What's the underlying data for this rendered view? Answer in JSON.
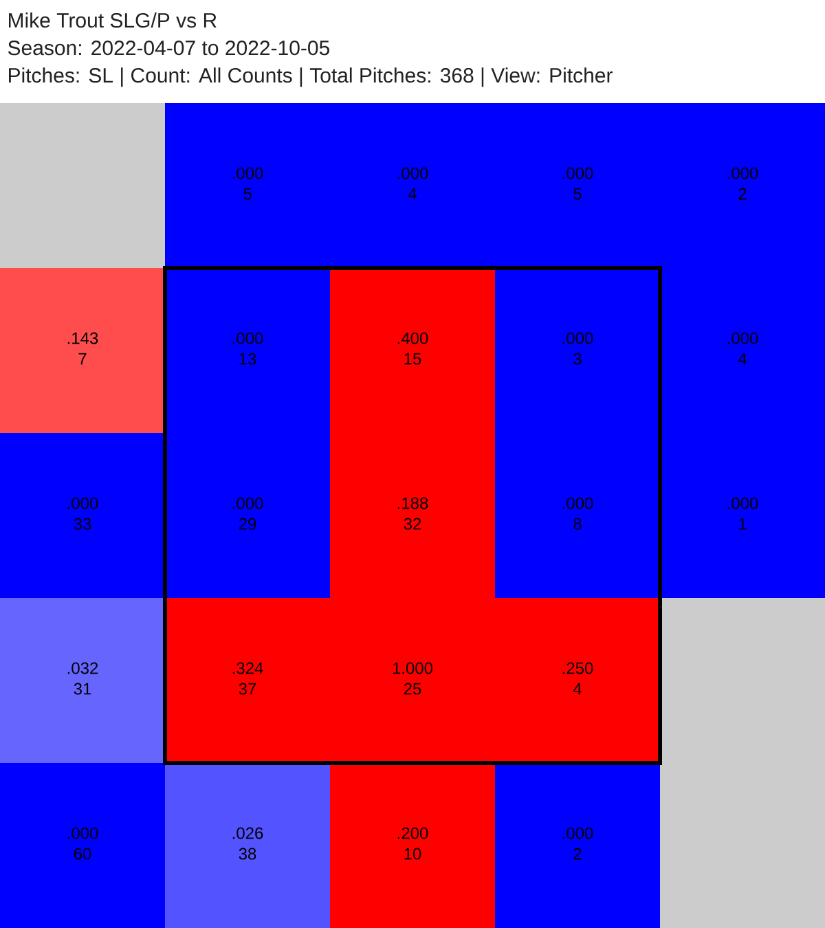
{
  "chart_data": [
    {
      "type": "heatmap",
      "title": "Mike Trout SLG/P vs R",
      "subtitle": "Season: 2022-04-07 to 2022-10-05",
      "annotations": [
        "Pitches: SL | Count: All Counts | Total Pitches: 368 | View: Pitcher"
      ],
      "categories": [
        null,
        null,
        null,
        null,
        null
      ],
      "y_categories": [
        null,
        null,
        null,
        null,
        null
      ],
      "cells": [
        [
          null,
          0,
          0,
          0,
          0
        ],
        [
          0.143,
          0,
          0.4,
          0,
          0
        ],
        [
          0,
          0,
          0.188,
          0,
          0
        ],
        [
          0.032,
          0.324,
          1.0,
          0.25,
          null
        ],
        [
          0,
          0.026,
          0.2,
          0,
          null
        ]
      ],
      "cell_labels": [
        [
          null,
          ".000",
          ".000",
          ".000",
          ".000"
        ],
        [
          ".143",
          ".000",
          ".400",
          ".000",
          ".000"
        ],
        [
          ".000",
          ".000",
          ".188",
          ".000",
          ".000"
        ],
        [
          ".032",
          ".324",
          "1.000",
          ".250",
          null
        ],
        [
          ".000",
          ".026",
          ".200",
          ".000",
          null
        ]
      ]
    },
    {
      "type": "other",
      "categories": [
        null,
        null,
        null,
        null,
        null
      ],
      "y_categories": [
        null,
        null,
        null,
        null,
        null
      ],
      "cell_labels": [
        [
          null,
          "5",
          "4",
          "5",
          "2"
        ],
        [
          "7",
          "13",
          "15",
          "3",
          "4"
        ],
        [
          "33",
          "29",
          "32",
          "8",
          "1"
        ],
        [
          "31",
          "37",
          "25",
          "4",
          null
        ],
        [
          "60",
          "38",
          "10",
          "2",
          null
        ]
      ]
    }
  ]
}
